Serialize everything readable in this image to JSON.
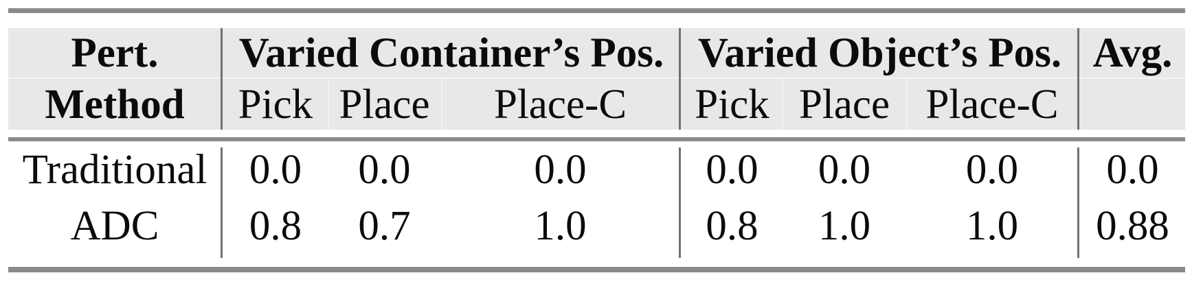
{
  "table": {
    "header": {
      "method": {
        "line1": "Pert.",
        "line2": "Method"
      },
      "group1": {
        "label": "Varied Container’s Pos.",
        "sub": [
          "Pick",
          "Place",
          "Place-C"
        ]
      },
      "group2": {
        "label": "Varied Object’s Pos.",
        "sub": [
          "Pick",
          "Place",
          "Place-C"
        ]
      },
      "avg": "Avg."
    },
    "rows": [
      {
        "method": "Traditional",
        "g1": [
          "0.0",
          "0.0",
          "0.0"
        ],
        "g2": [
          "0.0",
          "0.0",
          "0.0"
        ],
        "avg": "0.0"
      },
      {
        "method": "ADC",
        "g1": [
          "0.8",
          "0.7",
          "1.0"
        ],
        "g2": [
          "0.8",
          "1.0",
          "1.0"
        ],
        "avg": "0.88"
      }
    ],
    "colors": {
      "header_bg": "#e8e8e8",
      "rule_gray": "#8a8a8a",
      "divider_gray": "#707070",
      "text": "#0b0b0b"
    }
  },
  "chart_data": {
    "type": "table",
    "title": "",
    "columns": [
      "Pert. Method",
      "Varied Container’s Pos. Pick",
      "Varied Container’s Pos. Place",
      "Varied Container’s Pos. Place-C",
      "Varied Object’s Pos. Pick",
      "Varied Object’s Pos. Place",
      "Varied Object’s Pos. Place-C",
      "Avg."
    ],
    "rows": [
      [
        "Traditional",
        0.0,
        0.0,
        0.0,
        0.0,
        0.0,
        0.0,
        0.0
      ],
      [
        "ADC",
        0.8,
        0.7,
        1.0,
        0.8,
        1.0,
        1.0,
        0.88
      ]
    ]
  }
}
